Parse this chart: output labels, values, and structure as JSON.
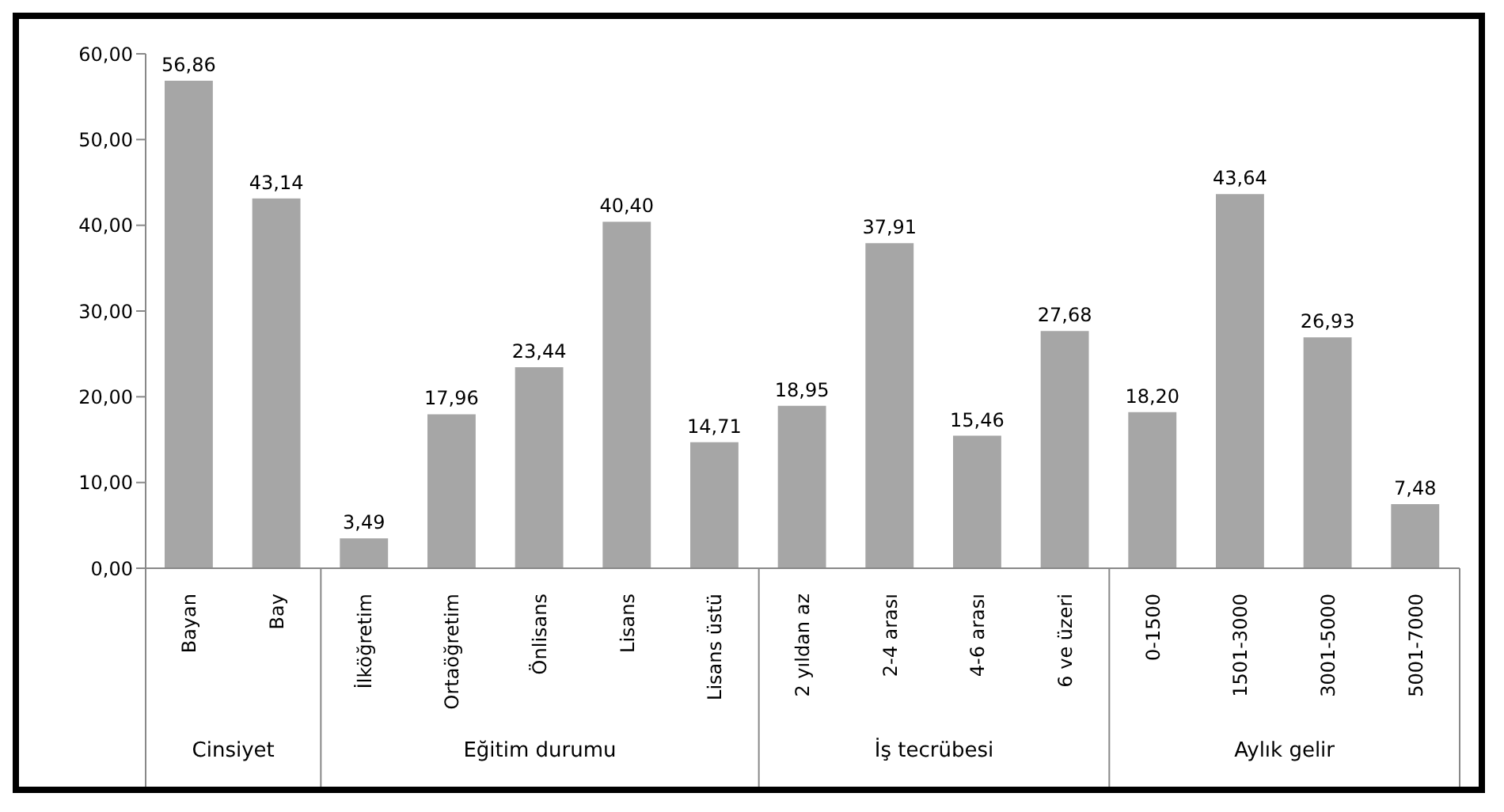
{
  "chart_data": {
    "type": "bar",
    "categories": [
      "Bayan",
      "Bay",
      "İlköğretim",
      "Ortaöğretim",
      "Önlisans",
      "Lisans",
      "Lisans üstü",
      "2 yıldan az",
      "2-4 arası",
      "4-6 arası",
      "6 ve üzeri",
      "0-1500",
      "1501-3000",
      "3001-5000",
      "5001-7000"
    ],
    "values": [
      56.86,
      43.14,
      3.49,
      17.96,
      23.44,
      40.4,
      14.71,
      18.95,
      37.91,
      15.46,
      27.68,
      18.2,
      43.64,
      26.93,
      7.48
    ],
    "value_labels": [
      "56,86",
      "43,14",
      "3,49",
      "17,96",
      "23,44",
      "40,40",
      "14,71",
      "18,95",
      "37,91",
      "15,46",
      "27,68",
      "18,20",
      "43,64",
      "26,93",
      "7,48"
    ],
    "color": "#a6a6a6",
    "ylim": [
      0,
      60
    ],
    "yticks": [
      {
        "value": 0,
        "label": "0,00"
      },
      {
        "value": 10,
        "label": "10,00"
      },
      {
        "value": 20,
        "label": "20,00"
      },
      {
        "value": 30,
        "label": "30,00"
      },
      {
        "value": 40,
        "label": "40,00"
      },
      {
        "value": 50,
        "label": "50,00"
      },
      {
        "value": 60,
        "label": "60,00"
      }
    ],
    "grid": false,
    "legend": false,
    "annotations": [
      "Cinsiyet",
      "Eğitim durumu",
      "İş tecrübesi",
      "Aylık gelir"
    ]
  }
}
